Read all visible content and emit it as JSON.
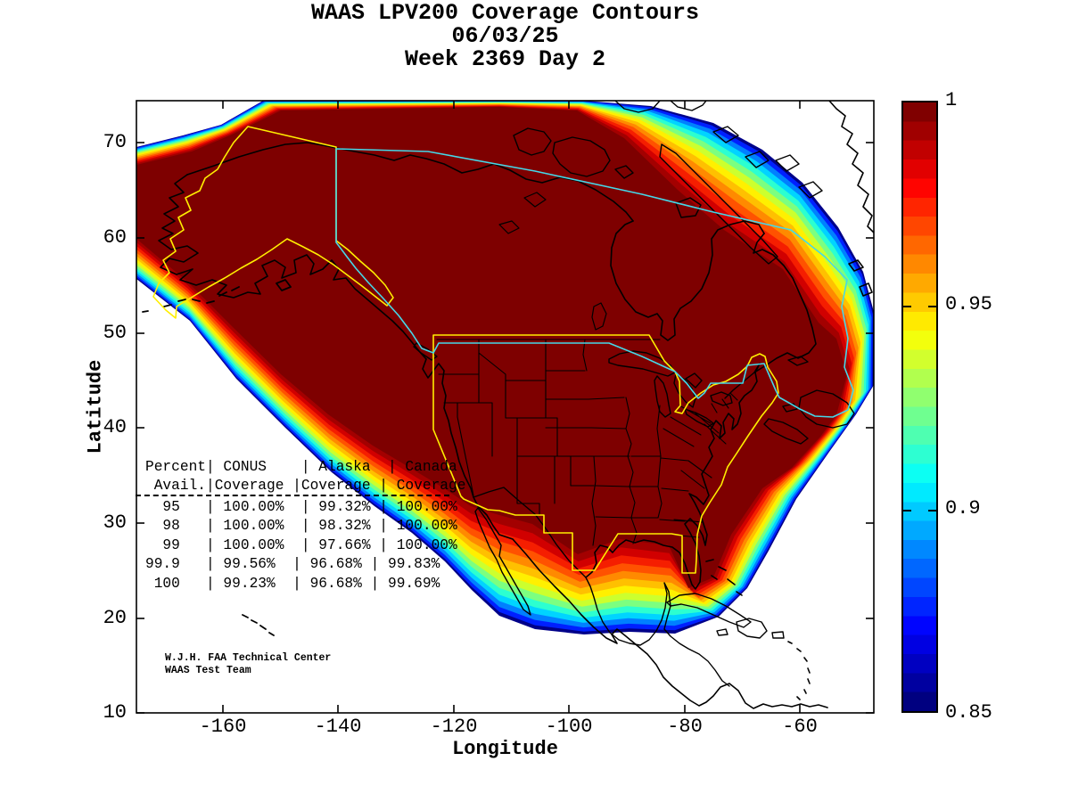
{
  "figure": {
    "title_lines": [
      "WAAS LPV200 Coverage Contours",
      "06/03/25",
      "Week 2369 Day 2"
    ],
    "xlabel": "Longitude",
    "ylabel": "Latitude"
  },
  "axes": {
    "x_tick_labels": [
      "-160",
      "-140",
      "-120",
      "-100",
      "-80",
      "-60"
    ],
    "y_tick_labels": [
      "70",
      "60",
      "50",
      "40",
      "30",
      "20",
      "10"
    ]
  },
  "colorbar": {
    "tick_labels": [
      "1",
      "0.95",
      "0.9",
      "0.85"
    ],
    "range": [
      0.85,
      1.0
    ]
  },
  "coverage_table": {
    "header_lines": [
      "Percent| CONUS    | Alaska  | Canada",
      " Avail.|Coverage |Coverage | Coverage"
    ],
    "row_lines": [
      "  95   | 100.00%  | 99.32% | 100.00%",
      "  98   | 100.00%  | 98.32% | 100.00%",
      "  99   | 100.00%  | 97.66% | 100.00%",
      "99.9   | 99.56%  | 96.68% | 99.83%",
      " 100   | 99.23%  | 96.68% | 99.69%"
    ]
  },
  "credit_lines": [
    "W.J.H. FAA Technical Center",
    "WAAS Test Team"
  ],
  "map_colors": {
    "coastline": "#000000",
    "state_lines": "#000000",
    "service_volume_outline": "#ffee00",
    "canada_outline": "#45d8e8",
    "background": "#ffffff"
  },
  "chart_data": {
    "type": "heatmap",
    "subtype": "filled-contour-coverage-map",
    "title": "WAAS LPV200 Coverage Contours",
    "date": "06/03/25",
    "week": 2369,
    "day": 2,
    "xlabel": "Longitude",
    "ylabel": "Latitude",
    "xlim": [
      -175,
      -47
    ],
    "ylim": [
      10,
      74.5
    ],
    "x_ticks": [
      -160,
      -140,
      -120,
      -100,
      -80,
      -60
    ],
    "y_ticks": [
      70,
      60,
      50,
      40,
      30,
      20,
      10
    ],
    "grid": false,
    "colorbar": {
      "ticks": [
        1,
        0.95,
        0.9,
        0.85
      ],
      "range": [
        0.85,
        1.0
      ],
      "colormap": "jet",
      "max_color": "#7e0000",
      "min_color": "#000089"
    },
    "coverage_summary": {
      "columns": [
        "Percent Avail.",
        "CONUS Coverage",
        "Alaska Coverage",
        "Canada Coverage"
      ],
      "rows": [
        [
          "95",
          "100.00%",
          "99.32%",
          "100.00%"
        ],
        [
          "98",
          "100.00%",
          "98.32%",
          "100.00%"
        ],
        [
          "99",
          "100.00%",
          "97.66%",
          "100.00%"
        ],
        [
          "99.9",
          "99.56%",
          "96.68%",
          "99.83%"
        ],
        [
          "100",
          "99.23%",
          "96.68%",
          "99.69%"
        ]
      ]
    }
  }
}
